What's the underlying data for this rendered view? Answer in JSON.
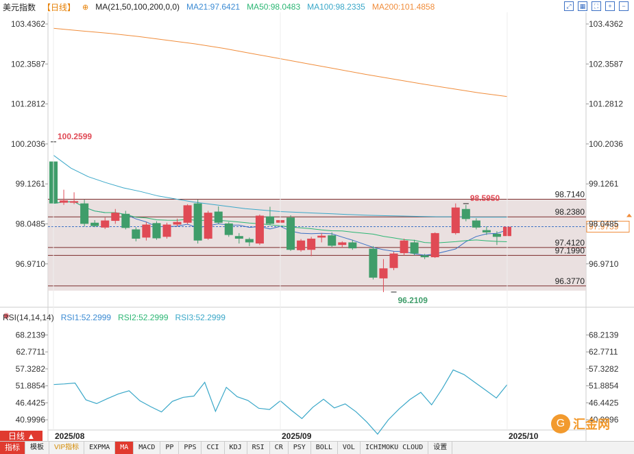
{
  "header": {
    "title": "美元指数",
    "timeframe_tag": "【日线】",
    "ma_params": "MA(21,50,100,200,0,0)",
    "ma21": "MA21:97.6421",
    "ma50": "MA50:98.0483",
    "ma100": "MA100:98.2335",
    "ma200": "MA200:101.4858"
  },
  "rsi_header": {
    "params": "RSI(14,14,14)",
    "rsi1": "RSI1:52.2999",
    "rsi2": "RSI2:52.2999",
    "rsi3": "RSI3:52.2999"
  },
  "colors": {
    "up": "#e04a55",
    "down": "#3f9d6a",
    "ma21": "#3a6fc4",
    "ma50": "#2bb673",
    "ma100": "#39a7c8",
    "ma200": "#f08c3a",
    "rsi": "#39a7c8",
    "zone": "#e6dada"
  },
  "timeframe_button": "日线",
  "logo_text": "汇金网",
  "bottom_tabs": [
    "指标",
    "模板",
    "VIP指标",
    "EXPMA",
    "MA",
    "MACD",
    "PP",
    "PPS",
    "CCI",
    "KDJ",
    "RSI",
    "CR",
    "PSY",
    "BOLL",
    "VOL",
    "ICHIMOKU CLOUD",
    "设置"
  ],
  "chart_data": {
    "type": "candlestick",
    "y_axis_ticks": [
      "103.4362",
      "102.3587",
      "101.2812",
      "100.2036",
      "99.1261",
      "98.0485",
      "96.9710"
    ],
    "y_axis_tick_values": [
      103.4362,
      102.3587,
      101.2812,
      100.2036,
      99.1261,
      98.0485,
      96.971
    ],
    "ylim": [
      95.95,
      103.75
    ],
    "x_labels": [
      "2025/08",
      "2025/09",
      "2025/10"
    ],
    "x_label_index": [
      0,
      22,
      44
    ],
    "current_price": "97.9739",
    "current_price_value": 97.9739,
    "annotations": [
      {
        "text": "100.2599",
        "value": 100.2599,
        "index": 0
      },
      {
        "text": "98.5950",
        "value": 98.595,
        "index": 40
      },
      {
        "text": "96.2109",
        "value": 96.2109,
        "index": 33
      }
    ],
    "levels": [
      {
        "text": "98.7140",
        "value": 98.714
      },
      {
        "text": "98.2380",
        "value": 98.238
      },
      {
        "text": "97.4120",
        "value": 97.412
      },
      {
        "text": "97.1990",
        "value": 97.199
      },
      {
        "text": "96.3770",
        "value": 96.377
      }
    ],
    "zone": [
      96.25,
      98.7
    ],
    "candles": [
      [
        99.73,
        98.6,
        100.26,
        98.6
      ],
      [
        98.62,
        98.68,
        98.97,
        98.56
      ],
      [
        98.62,
        98.66,
        98.9,
        98.58
      ],
      [
        98.6,
        98.05,
        98.7,
        97.98
      ],
      [
        98.08,
        97.99,
        98.15,
        97.96
      ],
      [
        97.95,
        98.14,
        98.22,
        97.91
      ],
      [
        98.13,
        98.35,
        98.45,
        98.05
      ],
      [
        98.32,
        97.94,
        98.4,
        97.9
      ],
      [
        97.9,
        97.65,
        97.96,
        97.58
      ],
      [
        97.68,
        98.03,
        98.1,
        97.6
      ],
      [
        98.07,
        97.66,
        98.12,
        97.62
      ],
      [
        97.7,
        98.03,
        98.08,
        97.65
      ],
      [
        98.03,
        98.1,
        98.19,
        97.98
      ],
      [
        98.08,
        98.55,
        98.58,
        98.04
      ],
      [
        98.6,
        97.6,
        98.7,
        97.52
      ],
      [
        97.65,
        98.35,
        98.4,
        97.62
      ],
      [
        98.38,
        98.08,
        98.52,
        98.05
      ],
      [
        98.06,
        97.75,
        98.1,
        97.7
      ],
      [
        97.72,
        97.65,
        97.8,
        97.52
      ],
      [
        97.64,
        97.55,
        97.68,
        97.45
      ],
      [
        97.52,
        98.27,
        98.3,
        97.48
      ],
      [
        98.25,
        98.05,
        98.51,
        98.02
      ],
      [
        98.08,
        98.15,
        98.2,
        98.03
      ],
      [
        98.22,
        97.35,
        98.28,
        97.32
      ],
      [
        97.34,
        97.6,
        97.64,
        97.3
      ],
      [
        97.35,
        97.65,
        97.7,
        97.18
      ],
      [
        97.68,
        97.73,
        97.8,
        97.55
      ],
      [
        97.74,
        97.46,
        97.82,
        97.43
      ],
      [
        97.48,
        97.55,
        97.58,
        97.4
      ],
      [
        97.55,
        97.39,
        97.62,
        97.35
      ],
      [
        97.38,
        96.6,
        97.45,
        96.55
      ],
      [
        96.58,
        96.85,
        97.1,
        96.21
      ],
      [
        96.86,
        97.25,
        97.3,
        96.8
      ],
      [
        97.26,
        97.6,
        97.65,
        97.2
      ],
      [
        97.55,
        97.25,
        97.62,
        97.2
      ],
      [
        97.2,
        97.15,
        97.24,
        97.1
      ],
      [
        97.15,
        97.8,
        97.82,
        97.13
      ],
      [
        97.8,
        98.49,
        98.6,
        97.76
      ],
      [
        98.45,
        98.18,
        98.56,
        98.12
      ],
      [
        98.14,
        97.95,
        98.2,
        97.9
      ],
      [
        97.88,
        97.82,
        97.98,
        97.75
      ],
      [
        97.78,
        97.7,
        97.85,
        97.48
      ],
      [
        97.72,
        97.97,
        98.05,
        97.68
      ]
    ],
    "candle_x_index": [
      0,
      1,
      2,
      3,
      4,
      5,
      6,
      7,
      8,
      9,
      10,
      11,
      12,
      13,
      14,
      15,
      16,
      17,
      18,
      19,
      20,
      21,
      22,
      23,
      24,
      25,
      26,
      27,
      28,
      29,
      31,
      32,
      33,
      34,
      35,
      36,
      37,
      39,
      40,
      41,
      42,
      43,
      44
    ],
    "ma_series": [
      {
        "name": "MA100",
        "values": [
          99.9,
          99.55,
          99.32,
          99.16,
          99.02,
          98.92,
          98.8,
          98.72,
          98.64,
          98.58,
          98.52,
          98.46,
          98.42,
          98.38,
          98.36,
          98.34,
          98.32,
          98.3,
          98.28,
          98.27,
          98.26,
          98.25,
          98.24,
          98.24,
          98.23,
          98.23,
          98.23
        ]
      },
      {
        "name": "MA200",
        "values": [
          103.32,
          103.25,
          103.18,
          103.1,
          103.0,
          102.9,
          102.78,
          102.64,
          102.5,
          102.36,
          102.22,
          102.08,
          101.95,
          101.82,
          101.7,
          101.58,
          101.48
        ]
      }
    ],
    "rsi": {
      "y_axis_ticks": [
        "68.2139",
        "62.7711",
        "57.3282",
        "51.8854",
        "46.4425",
        "40.9996"
      ],
      "y_axis_tick_values": [
        68.2139,
        62.7711,
        57.3282,
        51.8854,
        46.4425,
        40.9996
      ],
      "ylim": [
        37.5,
        70.5
      ],
      "values": [
        52.3,
        52.5,
        52.8,
        47.4,
        46.2,
        47.8,
        49.3,
        50.3,
        47.1,
        45.2,
        43.5,
        46.9,
        48.2,
        48.6,
        53.0,
        43.7,
        51.4,
        48.4,
        47.2,
        44.7,
        44.3,
        47.1,
        44.1,
        41.4,
        45.0,
        47.6,
        44.8,
        46.1,
        43.6,
        40.3,
        36.4,
        41.0,
        44.5,
        47.5,
        49.8,
        45.8,
        51.0,
        57.0,
        55.5,
        53.0,
        50.5,
        48.0,
        52.3
      ]
    }
  }
}
